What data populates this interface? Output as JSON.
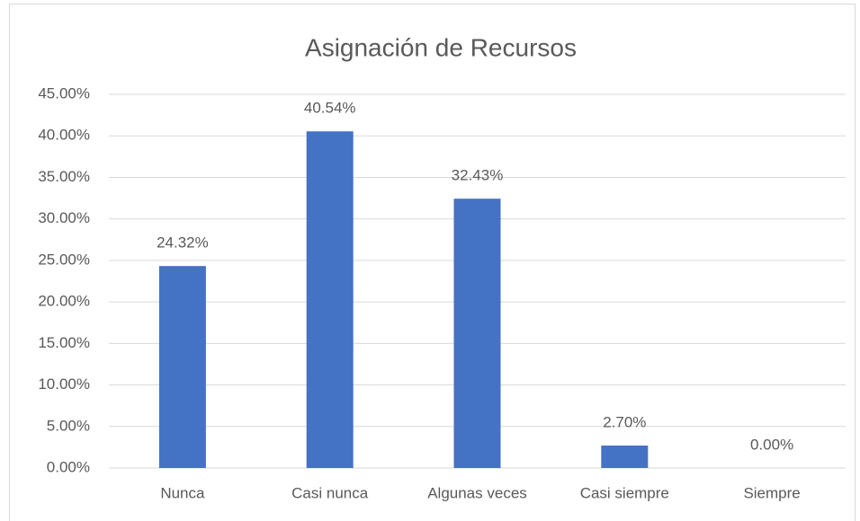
{
  "chart_data": {
    "type": "bar",
    "title": "Asignación de Recursos",
    "categories": [
      "Nunca",
      "Casi nunca",
      "Algunas veces",
      "Casi siempre",
      "Siempre"
    ],
    "values": [
      24.32,
      40.54,
      32.43,
      2.7,
      0.0
    ],
    "value_labels": [
      "24.32%",
      "40.54%",
      "32.43%",
      "2.70%",
      "0.00%"
    ],
    "color": "#4472c4",
    "ylim": [
      0,
      45
    ],
    "yticks": [
      {
        "value": 0,
        "label": "0.00%"
      },
      {
        "value": 5,
        "label": "5.00%"
      },
      {
        "value": 10,
        "label": "10.00%"
      },
      {
        "value": 15,
        "label": "15.00%"
      },
      {
        "value": 20,
        "label": "20.00%"
      },
      {
        "value": 25,
        "label": "25.00%"
      },
      {
        "value": 30,
        "label": "30.00%"
      },
      {
        "value": 35,
        "label": "35.00%"
      },
      {
        "value": 40,
        "label": "40.00%"
      },
      {
        "value": 45,
        "label": "45.00%"
      }
    ],
    "grid": true
  }
}
